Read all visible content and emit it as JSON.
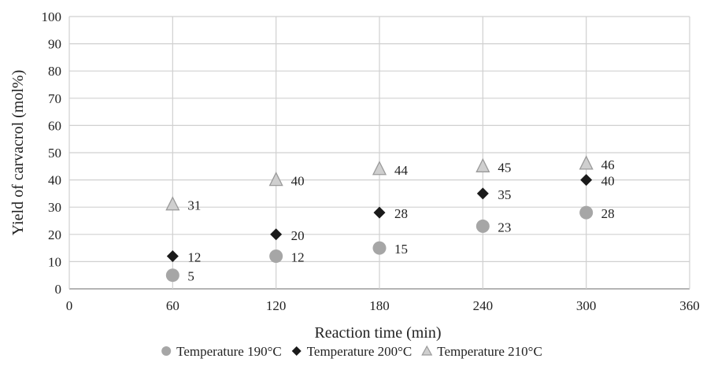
{
  "chart_data": {
    "type": "scatter",
    "xlabel": "Reaction time (min)",
    "ylabel": "Yield of carvacrol (mol%)",
    "xlim": [
      0,
      360
    ],
    "ylim": [
      0,
      100
    ],
    "xticks": [
      0,
      60,
      120,
      180,
      240,
      300,
      360
    ],
    "yticks": [
      0,
      10,
      20,
      30,
      40,
      50,
      60,
      70,
      80,
      90,
      100
    ],
    "grid": true,
    "legend_position": "bottom",
    "series": [
      {
        "name": "Temperature 190°C",
        "marker": "circle",
        "color": "#a6a6a6",
        "points": [
          {
            "x": 60,
            "y": 5,
            "label": "5"
          },
          {
            "x": 120,
            "y": 12,
            "label": "12"
          },
          {
            "x": 180,
            "y": 15,
            "label": "15"
          },
          {
            "x": 240,
            "y": 23,
            "label": "23"
          },
          {
            "x": 300,
            "y": 28,
            "label": "28"
          }
        ]
      },
      {
        "name": "Temperature 200°C",
        "marker": "diamond",
        "color": "#1a1a1a",
        "points": [
          {
            "x": 60,
            "y": 12,
            "label": "12"
          },
          {
            "x": 120,
            "y": 20,
            "label": "20"
          },
          {
            "x": 180,
            "y": 28,
            "label": "28"
          },
          {
            "x": 240,
            "y": 35,
            "label": "35"
          },
          {
            "x": 300,
            "y": 40,
            "label": "40"
          }
        ]
      },
      {
        "name": "Temperature 210°C",
        "marker": "triangle",
        "color": "#cfcfcf",
        "points": [
          {
            "x": 60,
            "y": 31,
            "label": "31"
          },
          {
            "x": 120,
            "y": 40,
            "label": "40"
          },
          {
            "x": 180,
            "y": 44,
            "label": "44"
          },
          {
            "x": 240,
            "y": 45,
            "label": "45"
          },
          {
            "x": 300,
            "y": 46,
            "label": "46"
          }
        ]
      }
    ]
  }
}
